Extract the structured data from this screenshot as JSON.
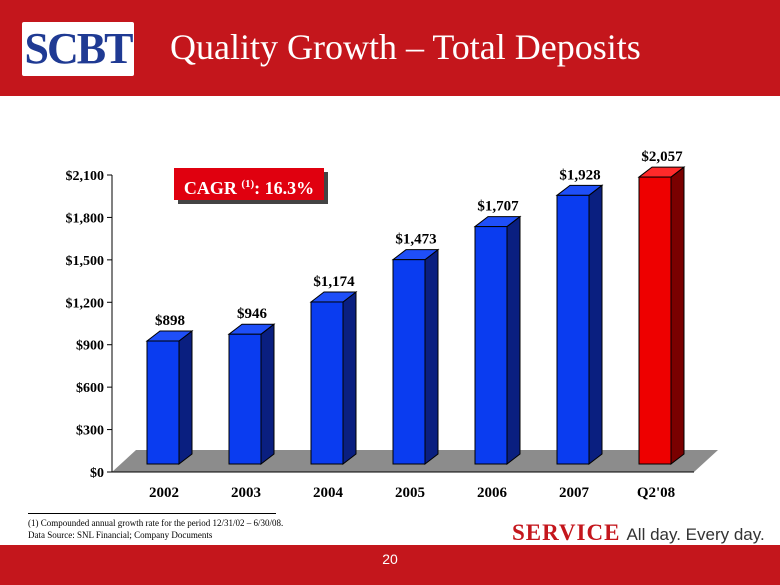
{
  "header": {
    "logo_text": "SCBT",
    "title": "Quality Growth – Total Deposits"
  },
  "cagr": {
    "label": "CAGR",
    "sup": "(1)",
    "value": ":  16.3%"
  },
  "chart_data": {
    "type": "bar",
    "title": "",
    "xlabel": "",
    "ylabel": "",
    "categories": [
      "2002",
      "2003",
      "2004",
      "2005",
      "2006",
      "2007",
      "Q2'08"
    ],
    "values": [
      898,
      946,
      1174,
      1473,
      1707,
      1928,
      2057
    ],
    "value_labels": [
      "$898",
      "$946",
      "$1,174",
      "$1,473",
      "$1,707",
      "$1,928",
      "$2,057"
    ],
    "ylim": [
      0,
      2100
    ],
    "yticks": [
      0,
      300,
      600,
      900,
      1200,
      1500,
      1800,
      2100
    ],
    "ytick_labels": [
      "$0",
      "$300",
      "$600",
      "$900",
      "$1,200",
      "$1,500",
      "$1,800",
      "$2,100"
    ],
    "grid": false,
    "style": "3d",
    "colors": {
      "bar_front": "#0a3cf0",
      "bar_side": "#0a1f80",
      "bar_top": "#1f4ff8",
      "highlight_front": "#ee0000",
      "highlight_side": "#7a0000",
      "highlight_top": "#ff2a2a",
      "floor": "#8c8c8c"
    },
    "highlight_index": 6
  },
  "footer": {
    "note1": "(1) Compounded annual growth rate for the period 12/31/02 – 6/30/08.",
    "note2": "Data Source: SNL Financial; Company Documents",
    "tagline_brand": "SERVICE",
    "tagline_rest": "All day. Every day.",
    "page_number": "20"
  },
  "colors": {
    "brand_red": "#c4161c",
    "logo_blue": "#1f3a93"
  }
}
